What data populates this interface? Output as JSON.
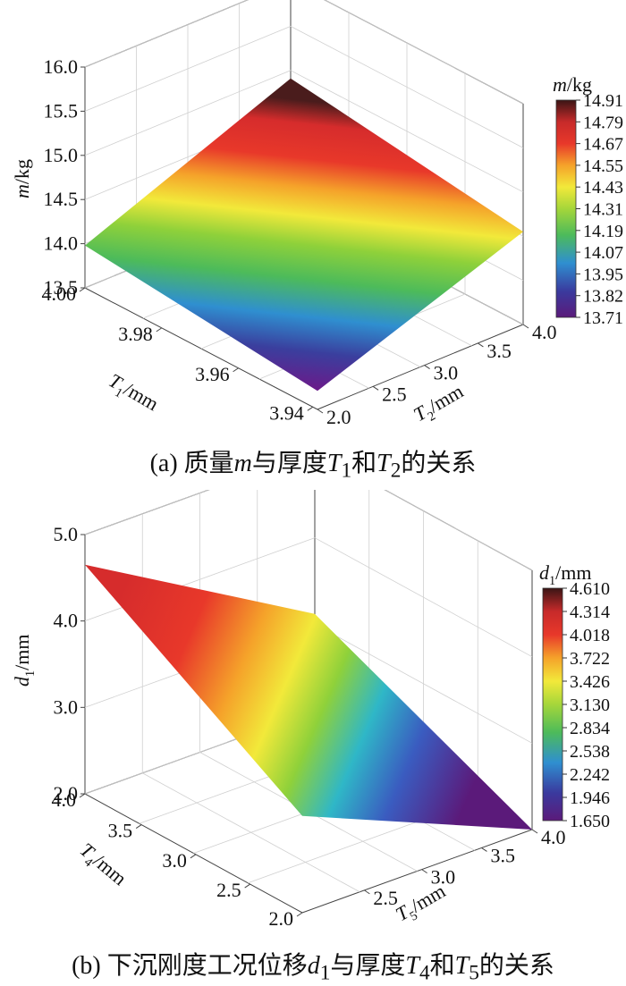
{
  "chart_data": [
    {
      "type": "surface3d",
      "panel": "a",
      "caption": "(a) 质量m与厚度T1和T2的关系",
      "caption_parts": {
        "prefix": "(a) 质量",
        "var1": "m",
        "mid1": "与厚度",
        "var2": "T",
        "sub2": "1",
        "mid2": "和",
        "var3": "T",
        "sub3": "2",
        "suffix": "的关系"
      },
      "zlabel": {
        "var": "m",
        "unit": "/kg"
      },
      "xlabel": {
        "var": "T",
        "sub": "1",
        "unit": "/mm"
      },
      "ylabel": {
        "var": "T",
        "sub": "2",
        "unit": "/mm"
      },
      "x_ticks": [
        "4.00",
        "3.98",
        "3.96",
        "3.94"
      ],
      "y_ticks": [
        "2.0",
        "2.5",
        "3.0",
        "3.5",
        "4.0"
      ],
      "z_ticks": [
        "16.0",
        "15.5",
        "15.0",
        "14.5",
        "14.0",
        "13.5"
      ],
      "xlim": [
        3.935,
        4.0
      ],
      "ylim": [
        2.0,
        4.0
      ],
      "zlim": [
        13.5,
        16.0
      ],
      "surface_corners": [
        {
          "T1": 4.0,
          "T2": 2.0,
          "m": 13.98
        },
        {
          "T1": 3.935,
          "T2": 2.0,
          "m": 13.71
        },
        {
          "T1": 3.935,
          "T2": 4.0,
          "m": 14.55
        },
        {
          "T1": 4.0,
          "T2": 4.0,
          "m": 14.91
        }
      ],
      "colorbar": {
        "title": {
          "var": "m",
          "unit": "/kg"
        },
        "min": 13.71,
        "max": 14.91,
        "ticks": [
          "14.91",
          "14.79",
          "14.67",
          "14.55",
          "14.43",
          "14.31",
          "14.19",
          "14.07",
          "13.95",
          "13.82",
          "13.71"
        ]
      }
    },
    {
      "type": "surface3d",
      "panel": "b",
      "caption": "(b) 下沉刚度工况位移d1与厚度T4和T5的关系",
      "caption_parts": {
        "prefix": "(b) 下沉刚度工况位移",
        "var1": "d",
        "sub1": "1",
        "mid1": "与厚度",
        "var2": "T",
        "sub2": "4",
        "mid2": "和",
        "var3": "T",
        "sub3": "5",
        "suffix": "的关系"
      },
      "zlabel": {
        "var": "d",
        "sub": "1",
        "unit": "/mm"
      },
      "xlabel": {
        "var": "T",
        "sub": "4",
        "unit": "/mm"
      },
      "ylabel": {
        "var": "T",
        "sub": "5",
        "unit": "/mm"
      },
      "x_ticks": [
        "4.0",
        "3.5",
        "3.0",
        "2.5",
        "2.0"
      ],
      "y_ticks": [
        "2.5",
        "3.0",
        "3.5",
        "4.0"
      ],
      "z_ticks": [
        "5.0",
        "4.0",
        "3.0",
        "2.0"
      ],
      "xlim": [
        2.0,
        4.0
      ],
      "ylim": [
        2.0,
        4.0
      ],
      "zlim": [
        1.65,
        5.0
      ],
      "surface_corners": [
        {
          "T4": 4.0,
          "T5": 2.0,
          "d1": 4.61
        },
        {
          "T4": 2.0,
          "T5": 2.0,
          "d1": 2.9
        },
        {
          "T4": 2.0,
          "T5": 4.0,
          "d1": 1.65
        },
        {
          "T4": 4.0,
          "T5": 4.0,
          "d1": 2.9
        }
      ],
      "colorbar": {
        "title": {
          "var": "d",
          "sub": "1",
          "unit": "/mm"
        },
        "min": 1.65,
        "max": 4.61,
        "ticks": [
          "4.610",
          "4.314",
          "4.018",
          "3.722",
          "3.426",
          "3.130",
          "2.834",
          "2.538",
          "2.242",
          "1.946",
          "1.650"
        ]
      }
    }
  ]
}
